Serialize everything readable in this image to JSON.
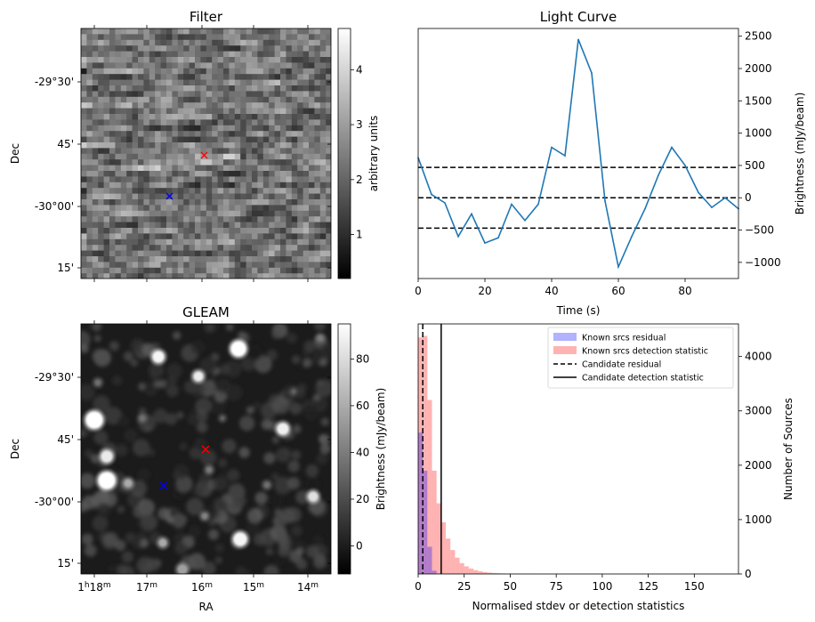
{
  "panels": {
    "filter": {
      "title": "Filter",
      "ylabel": "Dec",
      "ytick_labels": [
        "-29°30'",
        "45'",
        "-30°00'",
        "15'"
      ],
      "colorbar_label": "arbitrary units",
      "colorbar_ticks": [
        1,
        2,
        3,
        4
      ],
      "colorbar_range": [
        0.2,
        4.75
      ],
      "markers": [
        {
          "name": "red-cross-marker",
          "color": "#ff0000",
          "symbol": "x"
        },
        {
          "name": "blue-cross-marker",
          "color": "#0000ff",
          "symbol": "x"
        }
      ]
    },
    "gleam": {
      "title": "GLEAM",
      "xlabel": "RA",
      "ylabel": "Dec",
      "ytick_labels": [
        "-29°30'",
        "45'",
        "-30°00'",
        "15'"
      ],
      "xtick_labels": [
        {
          "h": "1",
          "hs": "h",
          "m": "18",
          "ms": "m"
        },
        {
          "h": "",
          "hs": "",
          "m": "17",
          "ms": "m"
        },
        {
          "h": "",
          "hs": "",
          "m": "16",
          "ms": "m"
        },
        {
          "h": "",
          "hs": "",
          "m": "15",
          "ms": "m"
        },
        {
          "h": "",
          "hs": "",
          "m": "14",
          "ms": "m"
        }
      ],
      "colorbar_label": "Brightness (mJy/beam)",
      "colorbar_ticks": [
        0,
        20,
        40,
        60,
        80
      ],
      "colorbar_range": [
        -12,
        95
      ]
    }
  },
  "chart_data": [
    {
      "type": "line",
      "title": "Light Curve",
      "xlabel": "Time (s)",
      "ylabel": "Brightness (mJy/beam)",
      "xlim": [
        0,
        96
      ],
      "ylim": [
        -1250,
        2620
      ],
      "xticks": [
        0,
        20,
        40,
        60,
        80
      ],
      "yticks": [
        -1000,
        -500,
        0,
        500,
        1000,
        1500,
        2000,
        2500
      ],
      "series": [
        {
          "color": "#1f77b4",
          "x": [
            0,
            4,
            8,
            12,
            16,
            20,
            24,
            28,
            32,
            36,
            40,
            44,
            48,
            52,
            56,
            60,
            64,
            68,
            72,
            76,
            80,
            84,
            88,
            92,
            96
          ],
          "y": [
            620,
            50,
            -80,
            -600,
            -250,
            -700,
            -620,
            -100,
            -350,
            -100,
            780,
            650,
            2450,
            1930,
            -50,
            -1070,
            -600,
            -170,
            350,
            780,
            500,
            80,
            -150,
            0,
            -170
          ]
        }
      ],
      "hlines": [
        {
          "y": 470,
          "style": "dashed",
          "color": "#000000"
        },
        {
          "y": 0,
          "style": "dashed",
          "color": "#000000"
        },
        {
          "y": -470,
          "style": "dashed",
          "color": "#000000"
        }
      ]
    },
    {
      "type": "bar",
      "xlabel": "Normalised stdev or detection statistics",
      "ylabel": "Number of Sources",
      "xlim": [
        0,
        174
      ],
      "ylim": [
        0,
        4600
      ],
      "xticks": [
        0,
        25,
        50,
        75,
        100,
        125,
        150
      ],
      "yticks": [
        0,
        1000,
        2000,
        3000,
        4000
      ],
      "legend_position": "top-right",
      "bin_width": 2.5,
      "series": [
        {
          "name": "Known srcs residual",
          "color": "#0000ff",
          "alpha": 0.3,
          "bin_start": 0,
          "values": [
            2600,
            1900,
            500,
            60,
            5
          ]
        },
        {
          "name": "Known srcs detection statistic",
          "color": "#ff0000",
          "alpha": 0.3,
          "bin_start": 0,
          "values": [
            4350,
            4380,
            3200,
            1900,
            1300,
            950,
            650,
            440,
            300,
            200,
            140,
            100,
            70,
            50,
            35,
            25,
            18,
            14,
            10,
            8,
            6,
            5,
            4,
            3,
            3,
            2,
            2,
            2,
            1,
            1,
            1,
            1,
            1,
            1,
            1,
            1,
            1,
            1,
            1,
            1
          ]
        }
      ],
      "vlines": [
        {
          "name": "Candidate residual",
          "x": 2.5,
          "style": "dashed",
          "color": "#000000"
        },
        {
          "name": "Candidate detection statistic",
          "x": 12.5,
          "style": "solid",
          "color": "#000000"
        }
      ]
    }
  ]
}
